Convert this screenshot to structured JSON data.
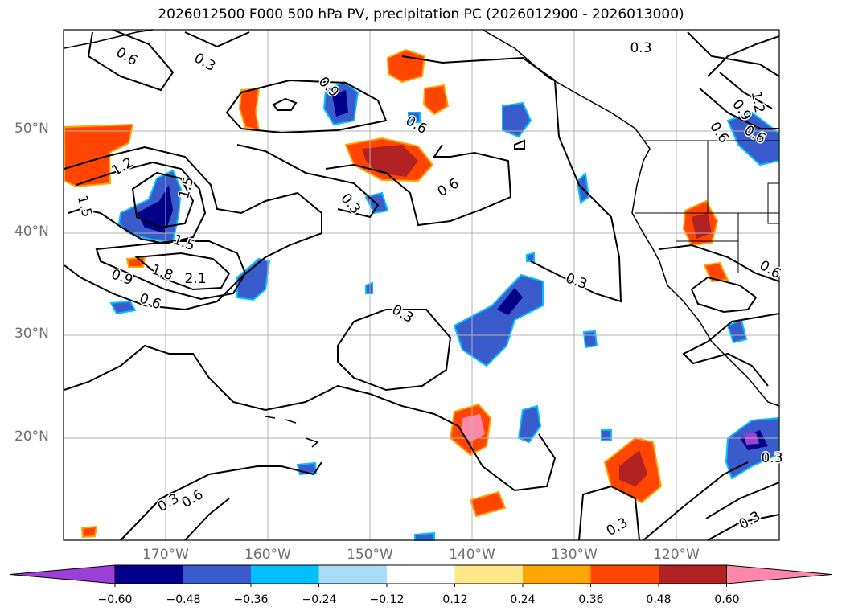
{
  "title": "2026012500 F000 500 hPa PV, precipitation PC (2026012900 - 2026013000)",
  "lat_labels": [
    "50°N",
    "40°N",
    "30°N",
    "20°N"
  ],
  "lon_labels": [
    "170°W",
    "160°W",
    "150°W",
    "140°W",
    "130°W",
    "120°W"
  ],
  "contour_labels": [
    "0.6",
    "0.3",
    "0.9",
    "0.6",
    "1.2",
    "1.5",
    "1.5",
    "1.5",
    "1.8",
    "2.1",
    "0.9",
    "0.6",
    "0.3",
    "0.6",
    "0.3",
    "0.3",
    "0.3",
    "0.9",
    "1.2",
    "0.6",
    "0.6",
    "0.3",
    "0.6",
    "0.3",
    "0.3",
    "0.3",
    "0.6"
  ],
  "colorbar": {
    "tick_labels": [
      "−0.60",
      "−0.48",
      "−0.36",
      "−0.24",
      "−0.12",
      "0.12",
      "0.24",
      "0.36",
      "0.48",
      "0.60"
    ],
    "colors": [
      "#9b3fd6",
      "#00008b",
      "#3a5bcc",
      "#00bfff",
      "#a9ddf7",
      "#ffffff",
      "#ffe88a",
      "#ffa500",
      "#ff4500",
      "#b22222",
      "#ff88aa"
    ]
  }
}
